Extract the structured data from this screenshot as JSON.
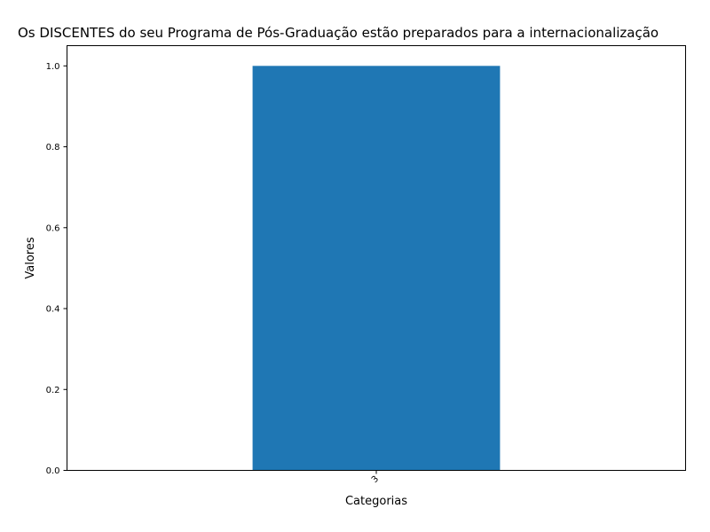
{
  "chart_data": {
    "type": "bar",
    "title": "Os DISCENTES do seu Programa de Pós-Graduação estão preparados para a internacionalização",
    "xlabel": "Categorias",
    "ylabel": "Valores",
    "categories": [
      "3"
    ],
    "values": [
      1.0
    ],
    "ylim": [
      0,
      1.05
    ],
    "yticks": [
      0.0,
      0.2,
      0.4,
      0.6,
      0.8,
      1.0
    ],
    "ytick_labels": [
      "0.0",
      "0.2",
      "0.4",
      "0.6",
      "0.8",
      "1.0"
    ],
    "bar_color": "#1f77b4",
    "grid": false,
    "legend": "none"
  }
}
